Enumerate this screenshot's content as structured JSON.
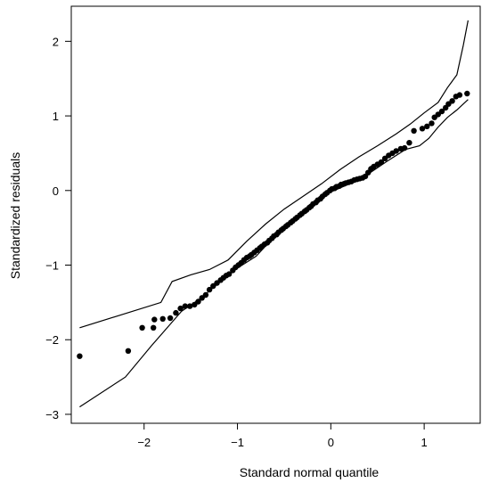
{
  "chart_data": {
    "type": "scatter",
    "title": "",
    "xlabel": "Standard normal quantile",
    "ylabel": "Standardized residuals",
    "xlim": [
      -2.78,
      1.6
    ],
    "ylim": [
      -3.12,
      2.47
    ],
    "xticks": [
      -2,
      -1,
      0,
      1
    ],
    "yticks": [
      -3,
      -2,
      -1,
      0,
      1,
      2
    ],
    "xtick_labels": [
      "−2",
      "−1",
      "0",
      "1"
    ],
    "ytick_labels": [
      "−3",
      "−2",
      "−1",
      "0",
      "1",
      "2"
    ],
    "grid": false,
    "legend": "none",
    "points": [
      [
        -2.69,
        -2.22
      ],
      [
        -2.17,
        -2.15
      ],
      [
        -2.02,
        -1.84
      ],
      [
        -1.9,
        -1.84
      ],
      [
        -1.89,
        -1.73
      ],
      [
        -1.8,
        -1.72
      ],
      [
        -1.72,
        -1.71
      ],
      [
        -1.66,
        -1.64
      ],
      [
        -1.61,
        -1.58
      ],
      [
        -1.56,
        -1.55
      ],
      [
        -1.51,
        -1.55
      ],
      [
        -1.46,
        -1.53
      ],
      [
        -1.42,
        -1.49
      ],
      [
        -1.38,
        -1.44
      ],
      [
        -1.34,
        -1.4
      ],
      [
        -1.3,
        -1.33
      ],
      [
        -1.26,
        -1.28
      ],
      [
        -1.22,
        -1.24
      ],
      [
        -1.18,
        -1.2
      ],
      [
        -1.15,
        -1.17
      ],
      [
        -1.12,
        -1.14
      ],
      [
        -1.09,
        -1.12
      ],
      [
        -1.05,
        -1.07
      ],
      [
        -1.02,
        -1.03
      ],
      [
        -0.99,
        -1.0
      ],
      [
        -0.96,
        -0.97
      ],
      [
        -0.93,
        -0.93
      ],
      [
        -0.9,
        -0.9
      ],
      [
        -0.87,
        -0.88
      ],
      [
        -0.85,
        -0.86
      ],
      [
        -0.82,
        -0.83
      ],
      [
        -0.79,
        -0.8
      ],
      [
        -0.76,
        -0.77
      ],
      [
        -0.74,
        -0.75
      ],
      [
        -0.71,
        -0.72
      ],
      [
        -0.68,
        -0.7
      ],
      [
        -0.66,
        -0.67
      ],
      [
        -0.63,
        -0.64
      ],
      [
        -0.61,
        -0.61
      ],
      [
        -0.58,
        -0.59
      ],
      [
        -0.56,
        -0.56
      ],
      [
        -0.53,
        -0.53
      ],
      [
        -0.51,
        -0.51
      ],
      [
        -0.48,
        -0.48
      ],
      [
        -0.46,
        -0.46
      ],
      [
        -0.43,
        -0.43
      ],
      [
        -0.41,
        -0.41
      ],
      [
        -0.38,
        -0.38
      ],
      [
        -0.36,
        -0.36
      ],
      [
        -0.33,
        -0.33
      ],
      [
        -0.31,
        -0.31
      ],
      [
        -0.28,
        -0.28
      ],
      [
        -0.26,
        -0.26
      ],
      [
        -0.23,
        -0.23
      ],
      [
        -0.21,
        -0.21
      ],
      [
        -0.19,
        -0.18
      ],
      [
        -0.16,
        -0.16
      ],
      [
        -0.14,
        -0.13
      ],
      [
        -0.11,
        -0.11
      ],
      [
        -0.09,
        -0.08
      ],
      [
        -0.06,
        -0.05
      ],
      [
        -0.04,
        -0.03
      ],
      [
        -0.01,
        0.0
      ],
      [
        0.01,
        0.02
      ],
      [
        0.04,
        0.03
      ],
      [
        0.06,
        0.05
      ],
      [
        0.09,
        0.06
      ],
      [
        0.11,
        0.08
      ],
      [
        0.14,
        0.09
      ],
      [
        0.16,
        0.1
      ],
      [
        0.19,
        0.11
      ],
      [
        0.22,
        0.12
      ],
      [
        0.25,
        0.14
      ],
      [
        0.28,
        0.15
      ],
      [
        0.31,
        0.16
      ],
      [
        0.34,
        0.17
      ],
      [
        0.37,
        0.19
      ],
      [
        0.4,
        0.24
      ],
      [
        0.43,
        0.29
      ],
      [
        0.46,
        0.32
      ],
      [
        0.5,
        0.35
      ],
      [
        0.54,
        0.38
      ],
      [
        0.58,
        0.43
      ],
      [
        0.62,
        0.47
      ],
      [
        0.66,
        0.5
      ],
      [
        0.7,
        0.53
      ],
      [
        0.75,
        0.56
      ],
      [
        0.79,
        0.57
      ],
      [
        0.84,
        0.64
      ],
      [
        0.89,
        0.8
      ],
      [
        0.98,
        0.83
      ],
      [
        1.03,
        0.86
      ],
      [
        1.08,
        0.9
      ],
      [
        1.11,
        0.98
      ],
      [
        1.15,
        1.02
      ],
      [
        1.19,
        1.06
      ],
      [
        1.23,
        1.11
      ],
      [
        1.26,
        1.16
      ],
      [
        1.3,
        1.2
      ],
      [
        1.34,
        1.26
      ],
      [
        1.38,
        1.28
      ],
      [
        1.46,
        1.3
      ]
    ],
    "upper_envelope": [
      [
        -2.69,
        -1.84
      ],
      [
        -1.82,
        -1.5
      ],
      [
        -1.7,
        -1.22
      ],
      [
        -1.5,
        -1.13
      ],
      [
        -1.3,
        -1.06
      ],
      [
        -1.1,
        -0.93
      ],
      [
        -0.9,
        -0.68
      ],
      [
        -0.7,
        -0.45
      ],
      [
        -0.5,
        -0.25
      ],
      [
        -0.3,
        -0.08
      ],
      [
        -0.1,
        0.09
      ],
      [
        0.1,
        0.28
      ],
      [
        0.3,
        0.45
      ],
      [
        0.5,
        0.6
      ],
      [
        0.7,
        0.76
      ],
      [
        0.85,
        0.89
      ],
      [
        1.0,
        1.04
      ],
      [
        1.15,
        1.18
      ],
      [
        1.25,
        1.38
      ],
      [
        1.35,
        1.55
      ],
      [
        1.42,
        1.95
      ],
      [
        1.47,
        2.28
      ]
    ],
    "lower_envelope": [
      [
        -2.69,
        -2.9
      ],
      [
        -2.2,
        -2.5
      ],
      [
        -1.92,
        -2.08
      ],
      [
        -1.6,
        -1.62
      ],
      [
        -1.4,
        -1.45
      ],
      [
        -1.2,
        -1.24
      ],
      [
        -1.0,
        -1.04
      ],
      [
        -0.8,
        -0.88
      ],
      [
        -0.6,
        -0.61
      ],
      [
        -0.4,
        -0.41
      ],
      [
        -0.2,
        -0.2
      ],
      [
        0.0,
        -0.02
      ],
      [
        0.2,
        0.09
      ],
      [
        0.4,
        0.22
      ],
      [
        0.6,
        0.39
      ],
      [
        0.8,
        0.55
      ],
      [
        0.95,
        0.6
      ],
      [
        1.05,
        0.7
      ],
      [
        1.15,
        0.85
      ],
      [
        1.25,
        0.98
      ],
      [
        1.35,
        1.08
      ],
      [
        1.47,
        1.22
      ]
    ]
  }
}
